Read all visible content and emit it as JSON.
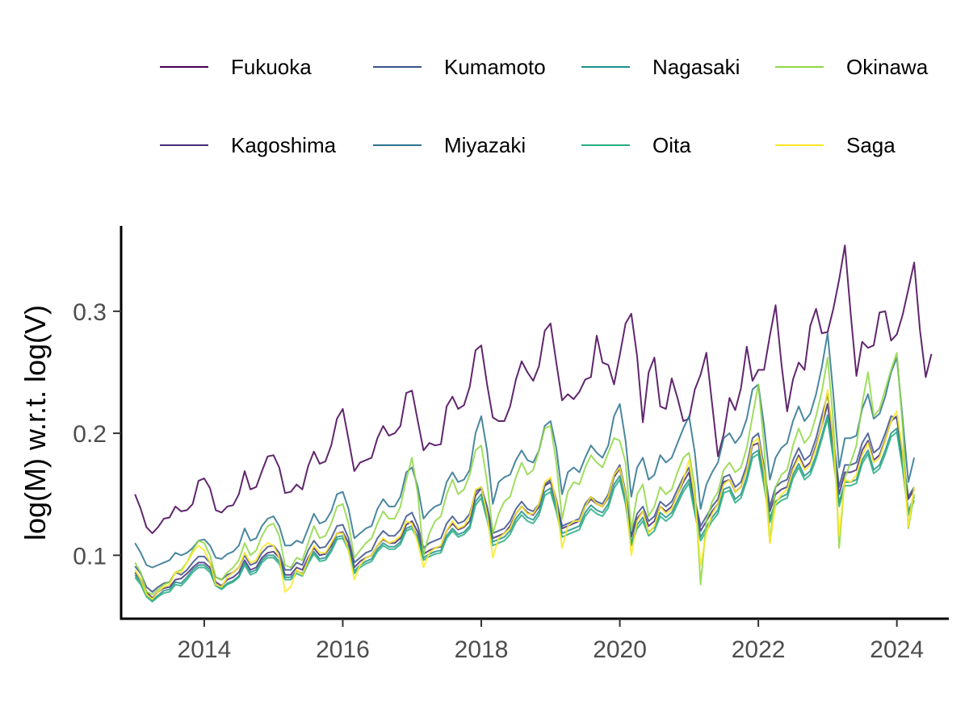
{
  "chart_data": {
    "type": "line",
    "title": "",
    "xlabel": "",
    "ylabel": "log(M) w.r.t. log(V)",
    "xlim": [
      2012.8,
      2024.75
    ],
    "ylim": [
      0.048,
      0.37
    ],
    "x_ticks": [
      "2014",
      "2016",
      "2018",
      "2020",
      "2022",
      "2024"
    ],
    "y_ticks": [
      "0.1",
      "0.2",
      "0.3"
    ],
    "grid": false,
    "legend_position": "top",
    "x_start": 2013.0,
    "x_step": 0.08333,
    "series": [
      {
        "name": "Fukuoka",
        "color": "#440154",
        "values": [
          0.15,
          0.138,
          0.123,
          0.118,
          0.123,
          0.13,
          0.131,
          0.14,
          0.136,
          0.137,
          0.142,
          0.161,
          0.163,
          0.155,
          0.137,
          0.135,
          0.14,
          0.141,
          0.15,
          0.169,
          0.154,
          0.156,
          0.169,
          0.181,
          0.182,
          0.172,
          0.151,
          0.152,
          0.158,
          0.154,
          0.173,
          0.185,
          0.175,
          0.177,
          0.19,
          0.212,
          0.22,
          0.195,
          0.169,
          0.176,
          0.178,
          0.18,
          0.196,
          0.206,
          0.198,
          0.2,
          0.206,
          0.233,
          0.235,
          0.21,
          0.186,
          0.192,
          0.19,
          0.191,
          0.222,
          0.23,
          0.22,
          0.223,
          0.238,
          0.268,
          0.272,
          0.24,
          0.213,
          0.21,
          0.21,
          0.222,
          0.244,
          0.259,
          0.25,
          0.243,
          0.255,
          0.284,
          0.29,
          0.258,
          0.227,
          0.232,
          0.228,
          0.234,
          0.244,
          0.246,
          0.28,
          0.258,
          0.256,
          0.24,
          0.264,
          0.29,
          0.298,
          0.263,
          0.209,
          0.25,
          0.262,
          0.222,
          0.22,
          0.245,
          0.229,
          0.21,
          0.212,
          0.236,
          0.248,
          0.266,
          0.224,
          0.181,
          0.199,
          0.229,
          0.219,
          0.237,
          0.271,
          0.243,
          0.252,
          0.252,
          0.28,
          0.305,
          0.257,
          0.218,
          0.244,
          0.258,
          0.252,
          0.288,
          0.302,
          0.282,
          0.283,
          0.302,
          0.326,
          0.354,
          0.298,
          0.247,
          0.275,
          0.27,
          0.272,
          0.299,
          0.3,
          0.276,
          0.281,
          0.297,
          0.318,
          0.34,
          0.285,
          0.246,
          0.265
        ]
      },
      {
        "name": "Kagoshima",
        "color": "#472D7B",
        "values": [
          0.086,
          0.08,
          0.07,
          0.065,
          0.07,
          0.073,
          0.074,
          0.08,
          0.081,
          0.085,
          0.09,
          0.094,
          0.094,
          0.09,
          0.078,
          0.075,
          0.08,
          0.082,
          0.086,
          0.096,
          0.088,
          0.09,
          0.098,
          0.102,
          0.103,
          0.098,
          0.084,
          0.084,
          0.09,
          0.088,
          0.098,
          0.106,
          0.1,
          0.101,
          0.108,
          0.118,
          0.119,
          0.11,
          0.09,
          0.095,
          0.098,
          0.1,
          0.108,
          0.113,
          0.11,
          0.11,
          0.114,
          0.125,
          0.128,
          0.119,
          0.101,
          0.104,
          0.106,
          0.107,
          0.12,
          0.126,
          0.121,
          0.123,
          0.128,
          0.149,
          0.155,
          0.136,
          0.114,
          0.116,
          0.118,
          0.124,
          0.134,
          0.14,
          0.135,
          0.133,
          0.14,
          0.157,
          0.16,
          0.143,
          0.122,
          0.124,
          0.126,
          0.128,
          0.14,
          0.146,
          0.142,
          0.14,
          0.147,
          0.164,
          0.171,
          0.15,
          0.115,
          0.13,
          0.136,
          0.124,
          0.128,
          0.14,
          0.136,
          0.14,
          0.15,
          0.16,
          0.168,
          0.142,
          0.12,
          0.128,
          0.136,
          0.142,
          0.16,
          0.162,
          0.152,
          0.156,
          0.17,
          0.19,
          0.192,
          0.166,
          0.136,
          0.15,
          0.154,
          0.156,
          0.172,
          0.182,
          0.172,
          0.176,
          0.19,
          0.206,
          0.224,
          0.19,
          0.15,
          0.168,
          0.168,
          0.17,
          0.186,
          0.194,
          0.178,
          0.182,
          0.195,
          0.21,
          0.214,
          0.182,
          0.146,
          0.154
        ]
      },
      {
        "name": "Kumamoto",
        "color": "#3B528B",
        "values": [
          0.091,
          0.085,
          0.074,
          0.07,
          0.074,
          0.077,
          0.078,
          0.086,
          0.084,
          0.088,
          0.094,
          0.099,
          0.099,
          0.094,
          0.082,
          0.08,
          0.084,
          0.086,
          0.09,
          0.1,
          0.092,
          0.094,
          0.102,
          0.107,
          0.108,
          0.102,
          0.088,
          0.088,
          0.094,
          0.092,
          0.104,
          0.112,
          0.106,
          0.107,
          0.114,
          0.124,
          0.125,
          0.114,
          0.094,
          0.098,
          0.102,
          0.104,
          0.114,
          0.12,
          0.116,
          0.116,
          0.121,
          0.132,
          0.135,
          0.124,
          0.106,
          0.11,
          0.112,
          0.114,
          0.126,
          0.132,
          0.126,
          0.128,
          0.134,
          0.152,
          0.156,
          0.14,
          0.118,
          0.12,
          0.122,
          0.128,
          0.138,
          0.144,
          0.138,
          0.136,
          0.142,
          0.158,
          0.162,
          0.146,
          0.124,
          0.126,
          0.128,
          0.13,
          0.142,
          0.148,
          0.144,
          0.142,
          0.15,
          0.166,
          0.174,
          0.152,
          0.118,
          0.134,
          0.14,
          0.128,
          0.132,
          0.144,
          0.14,
          0.144,
          0.154,
          0.164,
          0.172,
          0.146,
          0.124,
          0.132,
          0.14,
          0.146,
          0.164,
          0.166,
          0.156,
          0.16,
          0.174,
          0.196,
          0.2,
          0.172,
          0.14,
          0.156,
          0.16,
          0.162,
          0.178,
          0.188,
          0.178,
          0.182,
          0.196,
          0.214,
          0.232,
          0.196,
          0.156,
          0.174,
          0.174,
          0.176,
          0.192,
          0.2,
          0.184,
          0.188,
          0.2,
          0.214,
          0.212,
          0.18,
          0.148,
          0.156
        ]
      },
      {
        "name": "Miyazaki",
        "color": "#2C728E",
        "values": [
          0.11,
          0.102,
          0.092,
          0.09,
          0.092,
          0.094,
          0.096,
          0.102,
          0.1,
          0.102,
          0.106,
          0.112,
          0.113,
          0.108,
          0.098,
          0.097,
          0.101,
          0.103,
          0.108,
          0.122,
          0.112,
          0.114,
          0.124,
          0.13,
          0.132,
          0.124,
          0.108,
          0.108,
          0.112,
          0.11,
          0.122,
          0.134,
          0.126,
          0.128,
          0.136,
          0.15,
          0.152,
          0.138,
          0.114,
          0.118,
          0.122,
          0.124,
          0.138,
          0.146,
          0.14,
          0.14,
          0.148,
          0.168,
          0.172,
          0.156,
          0.13,
          0.136,
          0.14,
          0.142,
          0.16,
          0.168,
          0.16,
          0.162,
          0.17,
          0.2,
          0.214,
          0.186,
          0.142,
          0.16,
          0.164,
          0.166,
          0.178,
          0.186,
          0.178,
          0.176,
          0.186,
          0.206,
          0.21,
          0.188,
          0.15,
          0.168,
          0.172,
          0.168,
          0.18,
          0.19,
          0.184,
          0.18,
          0.19,
          0.214,
          0.224,
          0.194,
          0.148,
          0.172,
          0.18,
          0.162,
          0.166,
          0.182,
          0.176,
          0.18,
          0.192,
          0.204,
          0.214,
          0.184,
          0.138,
          0.158,
          0.168,
          0.176,
          0.196,
          0.2,
          0.192,
          0.198,
          0.212,
          0.236,
          0.24,
          0.206,
          0.162,
          0.18,
          0.188,
          0.192,
          0.21,
          0.222,
          0.21,
          0.216,
          0.232,
          0.254,
          0.282,
          0.232,
          0.172,
          0.196,
          0.196,
          0.198,
          0.22,
          0.232,
          0.212,
          0.216,
          0.23,
          0.25,
          0.262,
          0.212,
          0.16,
          0.18
        ]
      },
      {
        "name": "Nagasaki",
        "color": "#21908C",
        "values": [
          0.084,
          0.078,
          0.068,
          0.063,
          0.067,
          0.071,
          0.072,
          0.078,
          0.077,
          0.082,
          0.088,
          0.092,
          0.092,
          0.088,
          0.076,
          0.073,
          0.077,
          0.079,
          0.083,
          0.094,
          0.086,
          0.088,
          0.096,
          0.1,
          0.1,
          0.095,
          0.082,
          0.082,
          0.087,
          0.085,
          0.095,
          0.103,
          0.097,
          0.098,
          0.105,
          0.115,
          0.116,
          0.106,
          0.087,
          0.092,
          0.095,
          0.097,
          0.105,
          0.11,
          0.107,
          0.107,
          0.111,
          0.122,
          0.124,
          0.115,
          0.098,
          0.101,
          0.103,
          0.104,
          0.116,
          0.122,
          0.117,
          0.119,
          0.124,
          0.144,
          0.15,
          0.132,
          0.111,
          0.113,
          0.115,
          0.12,
          0.13,
          0.136,
          0.131,
          0.129,
          0.136,
          0.152,
          0.155,
          0.139,
          0.118,
          0.12,
          0.122,
          0.124,
          0.135,
          0.141,
          0.137,
          0.135,
          0.142,
          0.158,
          0.165,
          0.145,
          0.11,
          0.125,
          0.131,
          0.119,
          0.123,
          0.135,
          0.131,
          0.135,
          0.145,
          0.155,
          0.162,
          0.137,
          0.115,
          0.123,
          0.131,
          0.137,
          0.154,
          0.156,
          0.146,
          0.15,
          0.164,
          0.183,
          0.186,
          0.16,
          0.13,
          0.144,
          0.148,
          0.15,
          0.166,
          0.175,
          0.165,
          0.169,
          0.182,
          0.198,
          0.215,
          0.182,
          0.143,
          0.16,
          0.16,
          0.162,
          0.178,
          0.186,
          0.17,
          0.174,
          0.186,
          0.2,
          0.204,
          0.174,
          0.136,
          0.148
        ]
      },
      {
        "name": "Oita",
        "color": "#27AD81",
        "values": [
          0.082,
          0.076,
          0.066,
          0.062,
          0.066,
          0.069,
          0.07,
          0.076,
          0.075,
          0.08,
          0.086,
          0.09,
          0.09,
          0.086,
          0.075,
          0.072,
          0.076,
          0.078,
          0.082,
          0.092,
          0.084,
          0.086,
          0.094,
          0.098,
          0.098,
          0.093,
          0.08,
          0.08,
          0.085,
          0.083,
          0.093,
          0.101,
          0.095,
          0.096,
          0.103,
          0.113,
          0.114,
          0.104,
          0.085,
          0.09,
          0.093,
          0.095,
          0.103,
          0.108,
          0.105,
          0.105,
          0.109,
          0.12,
          0.122,
          0.113,
          0.096,
          0.099,
          0.101,
          0.102,
          0.114,
          0.12,
          0.115,
          0.117,
          0.122,
          0.141,
          0.147,
          0.129,
          0.108,
          0.11,
          0.112,
          0.117,
          0.127,
          0.133,
          0.128,
          0.126,
          0.133,
          0.149,
          0.152,
          0.136,
          0.115,
          0.117,
          0.119,
          0.121,
          0.132,
          0.138,
          0.134,
          0.132,
          0.139,
          0.155,
          0.162,
          0.142,
          0.108,
          0.122,
          0.128,
          0.116,
          0.12,
          0.132,
          0.128,
          0.132,
          0.142,
          0.152,
          0.159,
          0.134,
          0.112,
          0.12,
          0.128,
          0.134,
          0.151,
          0.153,
          0.143,
          0.147,
          0.161,
          0.18,
          0.183,
          0.157,
          0.127,
          0.141,
          0.145,
          0.147,
          0.163,
          0.172,
          0.162,
          0.166,
          0.179,
          0.195,
          0.212,
          0.179,
          0.14,
          0.157,
          0.157,
          0.159,
          0.175,
          0.183,
          0.167,
          0.171,
          0.183,
          0.197,
          0.201,
          0.171,
          0.133,
          0.145
        ]
      },
      {
        "name": "Okinawa",
        "color": "#8FD744",
        "values": [
          0.094,
          0.086,
          0.07,
          0.068,
          0.072,
          0.076,
          0.078,
          0.086,
          0.088,
          0.094,
          0.104,
          0.112,
          0.11,
          0.1,
          0.082,
          0.08,
          0.086,
          0.09,
          0.096,
          0.11,
          0.1,
          0.104,
          0.116,
          0.124,
          0.126,
          0.116,
          0.092,
          0.09,
          0.098,
          0.096,
          0.11,
          0.124,
          0.114,
          0.116,
          0.126,
          0.14,
          0.142,
          0.126,
          0.098,
          0.104,
          0.11,
          0.114,
          0.126,
          0.136,
          0.13,
          0.13,
          0.14,
          0.162,
          0.18,
          0.15,
          0.1,
          0.118,
          0.128,
          0.132,
          0.15,
          0.162,
          0.15,
          0.154,
          0.166,
          0.186,
          0.19,
          0.16,
          0.118,
          0.134,
          0.144,
          0.148,
          0.164,
          0.176,
          0.166,
          0.17,
          0.186,
          0.204,
          0.206,
          0.176,
          0.13,
          0.152,
          0.16,
          0.158,
          0.172,
          0.182,
          0.176,
          0.172,
          0.184,
          0.196,
          0.194,
          0.176,
          0.12,
          0.15,
          0.158,
          0.132,
          0.14,
          0.156,
          0.15,
          0.154,
          0.168,
          0.18,
          0.184,
          0.156,
          0.076,
          0.128,
          0.144,
          0.152,
          0.17,
          0.176,
          0.168,
          0.172,
          0.188,
          0.214,
          0.24,
          0.19,
          0.11,
          0.156,
          0.166,
          0.17,
          0.19,
          0.204,
          0.192,
          0.198,
          0.214,
          0.234,
          0.262,
          0.21,
          0.106,
          0.164,
          0.176,
          0.19,
          0.224,
          0.25,
          0.214,
          0.22,
          0.236,
          0.252,
          0.266,
          0.206,
          0.122,
          0.15
        ]
      },
      {
        "name": "Saga",
        "color": "#FDE725",
        "values": [
          0.088,
          0.08,
          0.068,
          0.064,
          0.07,
          0.074,
          0.076,
          0.086,
          0.086,
          0.094,
          0.102,
          0.108,
          0.104,
          0.094,
          0.076,
          0.074,
          0.082,
          0.086,
          0.09,
          0.102,
          0.094,
          0.096,
          0.106,
          0.11,
          0.108,
          0.098,
          0.07,
          0.074,
          0.088,
          0.084,
          0.096,
          0.108,
          0.102,
          0.102,
          0.11,
          0.118,
          0.118,
          0.104,
          0.08,
          0.092,
          0.098,
          0.1,
          0.108,
          0.114,
          0.11,
          0.112,
          0.116,
          0.128,
          0.126,
          0.11,
          0.09,
          0.102,
          0.106,
          0.108,
          0.12,
          0.128,
          0.122,
          0.124,
          0.132,
          0.154,
          0.156,
          0.134,
          0.098,
          0.114,
          0.118,
          0.122,
          0.134,
          0.14,
          0.134,
          0.134,
          0.142,
          0.16,
          0.164,
          0.144,
          0.106,
          0.124,
          0.128,
          0.128,
          0.14,
          0.148,
          0.142,
          0.14,
          0.148,
          0.166,
          0.172,
          0.15,
          0.1,
          0.128,
          0.136,
          0.118,
          0.124,
          0.14,
          0.134,
          0.138,
          0.15,
          0.162,
          0.178,
          0.146,
          0.092,
          0.118,
          0.134,
          0.142,
          0.158,
          0.162,
          0.152,
          0.156,
          0.17,
          0.192,
          0.196,
          0.168,
          0.11,
          0.142,
          0.15,
          0.154,
          0.17,
          0.18,
          0.17,
          0.174,
          0.188,
          0.206,
          0.236,
          0.194,
          0.116,
          0.162,
          0.16,
          0.166,
          0.182,
          0.192,
          0.176,
          0.18,
          0.194,
          0.21,
          0.218,
          0.184,
          0.124,
          0.156
        ]
      }
    ]
  }
}
